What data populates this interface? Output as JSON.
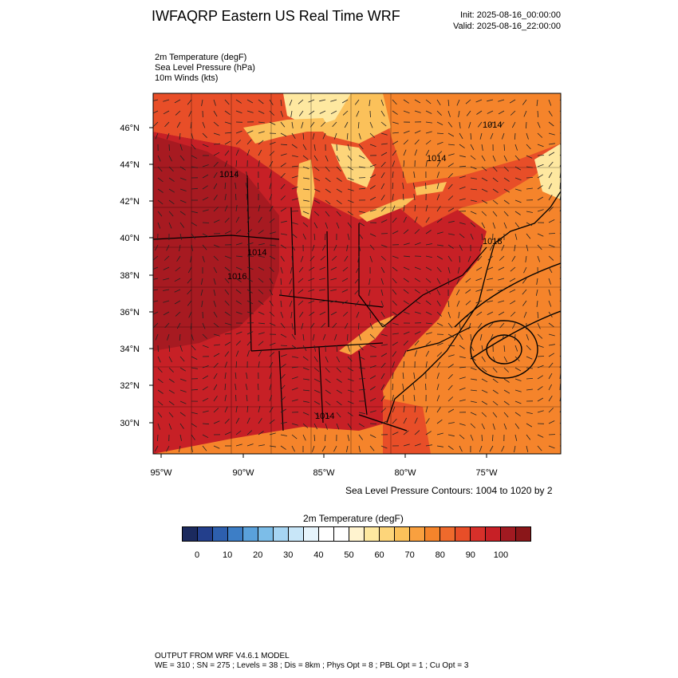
{
  "header": {
    "title": "IWFAQRP Eastern US Real Time WRF",
    "init": "Init: 2025-08-16_00:00:00",
    "valid": "Valid: 2025-08-16_22:00:00"
  },
  "fields": [
    "2m Temperature   (degF)",
    "Sea Level Pressure   (hPa)",
    "10m Winds   (kts)"
  ],
  "map": {
    "lat_labels": [
      "46°N",
      "44°N",
      "42°N",
      "40°N",
      "38°N",
      "36°N",
      "34°N",
      "32°N",
      "30°N"
    ],
    "lon_labels": [
      "95°W",
      "90°W",
      "85°W",
      "80°W",
      "75°W"
    ],
    "contour_labels": [
      "1014",
      "1014",
      "1014",
      "1014",
      "1018",
      "1014",
      "1016"
    ],
    "colors": {
      "hot": "#c72026",
      "dark_hot": "#a11a21",
      "warm": "#e84e28",
      "orange": "#f5842b",
      "light": "#fbc15a",
      "pale": "#fee8a0"
    }
  },
  "contour_note": "Sea Level Pressure Contours: 1004 to 1020 by 2",
  "colorbar": {
    "title": "2m Temperature  (degF)",
    "colors": [
      "#1b2a5e",
      "#233f8c",
      "#2d5fae",
      "#3d7ec6",
      "#5aa1db",
      "#7cbde8",
      "#a6d5f3",
      "#c8e6f8",
      "#e6f4fc",
      "#ffffff",
      "#ffffff",
      "#fff3cf",
      "#fee8a0",
      "#fdd57a",
      "#fbc15a",
      "#f9a03f",
      "#f5842b",
      "#ef6a2c",
      "#e84e28",
      "#d7302a",
      "#c72026",
      "#a11a21",
      "#8a1619"
    ],
    "labels": [
      "0",
      "10",
      "20",
      "30",
      "40",
      "50",
      "60",
      "70",
      "80",
      "90",
      "100"
    ]
  },
  "footer": [
    "OUTPUT FROM WRF V4.6.1 MODEL",
    "WE = 310 ; SN = 275 ; Levels = 38 ; Dis = 8km ; Phys Opt = 8 ; PBL Opt = 1 ; Cu Opt = 3"
  ]
}
